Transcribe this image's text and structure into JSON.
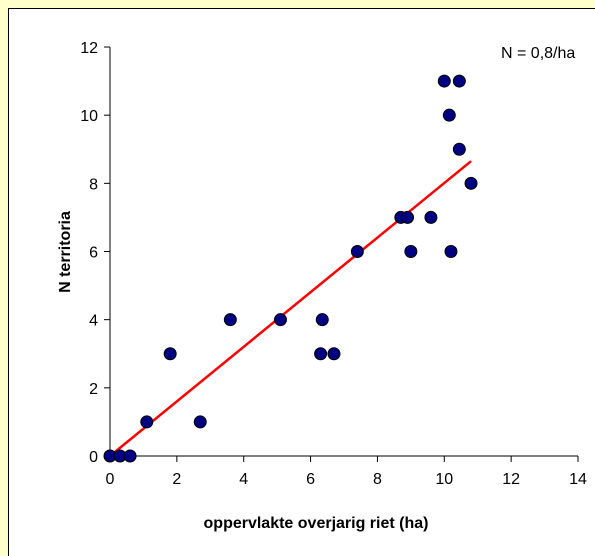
{
  "chart_data": {
    "type": "scatter",
    "title": "",
    "xlabel": "oppervlakte overjarig riet (ha)",
    "ylabel": "N territoria",
    "annotation": "N = 0,8/ha",
    "xlim": [
      0,
      14
    ],
    "ylim": [
      0,
      12
    ],
    "xticks": [
      0,
      2,
      4,
      6,
      8,
      10,
      12,
      14
    ],
    "yticks": [
      0,
      2,
      4,
      6,
      8,
      10,
      12
    ],
    "grid": false,
    "legend": "none",
    "series": [
      {
        "points": [
          [
            0.0,
            0
          ],
          [
            0.3,
            0
          ],
          [
            0.6,
            0
          ],
          [
            1.1,
            1
          ],
          [
            1.8,
            3
          ],
          [
            2.7,
            1
          ],
          [
            3.6,
            4
          ],
          [
            5.1,
            4
          ],
          [
            6.3,
            3
          ],
          [
            6.35,
            4
          ],
          [
            6.7,
            3
          ],
          [
            7.4,
            6
          ],
          [
            8.7,
            7
          ],
          [
            8.9,
            7
          ],
          [
            9.0,
            6
          ],
          [
            9.6,
            7
          ],
          [
            10.0,
            11
          ],
          [
            10.15,
            10
          ],
          [
            10.2,
            6
          ],
          [
            10.45,
            9
          ],
          [
            10.45,
            11
          ],
          [
            10.8,
            8
          ]
        ]
      }
    ],
    "trendline": {
      "x": [
        0,
        10.8
      ],
      "y": [
        0.0,
        8.65
      ]
    },
    "colors": {
      "points": "#000080",
      "trendline": "#ff0000",
      "background": "#ffffcc"
    }
  }
}
